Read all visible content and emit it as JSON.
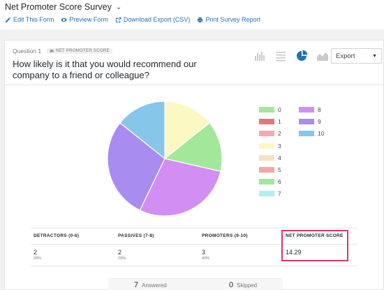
{
  "header": {
    "title": "Net Promoter Score Survey",
    "actions": [
      {
        "label": "Edit This Form",
        "icon": "pencil-icon"
      },
      {
        "label": "Preview Form",
        "icon": "eye-icon"
      },
      {
        "label": "Download Export (CSV)",
        "icon": "export-icon"
      },
      {
        "label": "Print Survey Report",
        "icon": "print-icon"
      }
    ]
  },
  "question": {
    "number": "Question 1",
    "type_badge": "NET PROMOTER SCORE",
    "text": "How likely is it that you would recommend our company to a friend or colleague?"
  },
  "view_icons": [
    "bar-chart-icon",
    "list-icon",
    "pie-chart-icon",
    "area-chart-icon"
  ],
  "export_label": "Export",
  "chart_data": {
    "type": "pie",
    "title": "",
    "slices": [
      {
        "label": "0",
        "value": 1,
        "color": "#a3e89a"
      },
      {
        "label": "1",
        "value": 0,
        "color": "#de7a7a"
      },
      {
        "label": "2",
        "value": 0,
        "color": "#f2aab6"
      },
      {
        "label": "3",
        "value": 1,
        "color": "#fcf8c4"
      },
      {
        "label": "4",
        "value": 0,
        "color": "#f5e2c6"
      },
      {
        "label": "5",
        "value": 0,
        "color": "#f2a9a0"
      },
      {
        "label": "6",
        "value": 0,
        "color": "#9fe89a"
      },
      {
        "label": "7",
        "value": 0,
        "color": "#aef0f2"
      },
      {
        "label": "8",
        "value": 2,
        "color": "#d28ef2"
      },
      {
        "label": "9",
        "value": 2,
        "color": "#a88cf0"
      },
      {
        "label": "10",
        "value": 1,
        "color": "#86c6e8"
      }
    ],
    "draw_order": [
      "3",
      "0",
      "8",
      "9",
      "10"
    ],
    "legend_placement": "right"
  },
  "table": {
    "columns": [
      {
        "header": "DETRACTORS (0-6)",
        "value": "2",
        "percent": "29%"
      },
      {
        "header": "PASSIVES (7-8)",
        "value": "2",
        "percent": "29%"
      },
      {
        "header": "PROMOTERS (9-10)",
        "value": "3",
        "percent": "43%"
      },
      {
        "header": "NET PROMOTER SCORE",
        "value": "14.29",
        "percent": ""
      }
    ],
    "highlight_color": "#d1386c"
  },
  "stats": {
    "answered_count": "7",
    "answered_label": "Answered",
    "skipped_count": "0",
    "skipped_label": "Skipped"
  }
}
